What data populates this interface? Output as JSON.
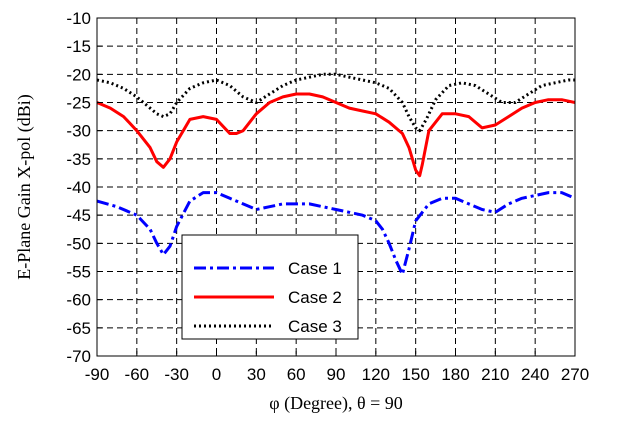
{
  "chart_data": {
    "type": "line",
    "title": "",
    "xlabel": "φ (Degree), θ = 90",
    "ylabel": "E-Plane Gain X-pol (dBi)",
    "xlim": [
      -90,
      270
    ],
    "ylim": [
      -70,
      -10
    ],
    "xticks": [
      -90,
      -60,
      -30,
      0,
      30,
      60,
      90,
      120,
      150,
      180,
      210,
      240,
      270
    ],
    "yticks": [
      -10,
      -15,
      -20,
      -25,
      -30,
      -35,
      -40,
      -45,
      -50,
      -55,
      -60,
      -65,
      -70
    ],
    "grid": true,
    "legend_position": "lower-left",
    "series": [
      {
        "name": "Case 1",
        "color": "#0000ff",
        "style": "dashdot",
        "x": [
          -90,
          -75,
          -60,
          -50,
          -45,
          -40,
          -35,
          -30,
          -20,
          -10,
          0,
          10,
          20,
          30,
          40,
          50,
          60,
          70,
          80,
          90,
          100,
          110,
          120,
          125,
          130,
          135,
          140,
          145,
          150,
          160,
          170,
          180,
          190,
          200,
          210,
          220,
          230,
          240,
          250,
          260,
          270
        ],
        "y": [
          -42.5,
          -43.5,
          -45,
          -47.5,
          -50,
          -52,
          -50.5,
          -47,
          -42.5,
          -41,
          -41,
          -42,
          -43,
          -44,
          -43.5,
          -43,
          -43,
          -43,
          -43.5,
          -44,
          -44.5,
          -45,
          -46,
          -47.5,
          -50,
          -53,
          -55.5,
          -51,
          -46,
          -43,
          -42,
          -42,
          -43,
          -44,
          -44.5,
          -43,
          -42,
          -41.5,
          -41,
          -41,
          -42
        ]
      },
      {
        "name": "Case 2",
        "color": "#ff0000",
        "style": "solid",
        "x": [
          -90,
          -80,
          -70,
          -60,
          -50,
          -45,
          -40,
          -35,
          -30,
          -20,
          -10,
          0,
          10,
          15,
          20,
          30,
          40,
          50,
          60,
          70,
          80,
          90,
          100,
          110,
          120,
          130,
          140,
          145,
          150,
          153,
          155,
          160,
          170,
          180,
          190,
          200,
          210,
          220,
          230,
          240,
          250,
          260,
          270
        ],
        "y": [
          -25,
          -26,
          -27.5,
          -30,
          -33,
          -35.5,
          -36.5,
          -35,
          -32,
          -28,
          -27.5,
          -28,
          -30.5,
          -30.5,
          -30,
          -27,
          -25,
          -24,
          -23.5,
          -23.5,
          -24,
          -25,
          -26,
          -26.5,
          -27,
          -28.5,
          -30.5,
          -33,
          -37,
          -38,
          -36,
          -30,
          -27,
          -27,
          -27.5,
          -29.5,
          -29,
          -27.5,
          -26,
          -25,
          -24.5,
          -24.5,
          -25
        ]
      },
      {
        "name": "Case 3",
        "color": "#000000",
        "style": "dotted",
        "x": [
          -90,
          -80,
          -70,
          -60,
          -50,
          -45,
          -40,
          -35,
          -30,
          -20,
          -10,
          0,
          10,
          20,
          30,
          40,
          50,
          60,
          70,
          80,
          90,
          100,
          110,
          120,
          130,
          140,
          145,
          150,
          153,
          158,
          165,
          175,
          185,
          195,
          205,
          215,
          225,
          235,
          245,
          255,
          265,
          270
        ],
        "y": [
          -21,
          -21.5,
          -22.5,
          -24,
          -26,
          -27,
          -27.5,
          -27,
          -25,
          -22.5,
          -21.5,
          -21,
          -22,
          -24,
          -25,
          -23.5,
          -22,
          -21,
          -20.5,
          -20,
          -20,
          -20.5,
          -21,
          -21.5,
          -22.5,
          -25,
          -27.5,
          -29.5,
          -30,
          -28,
          -24.5,
          -22,
          -21.5,
          -22,
          -23.5,
          -25,
          -25,
          -23.5,
          -22,
          -21.5,
          -21,
          -21
        ]
      }
    ]
  }
}
